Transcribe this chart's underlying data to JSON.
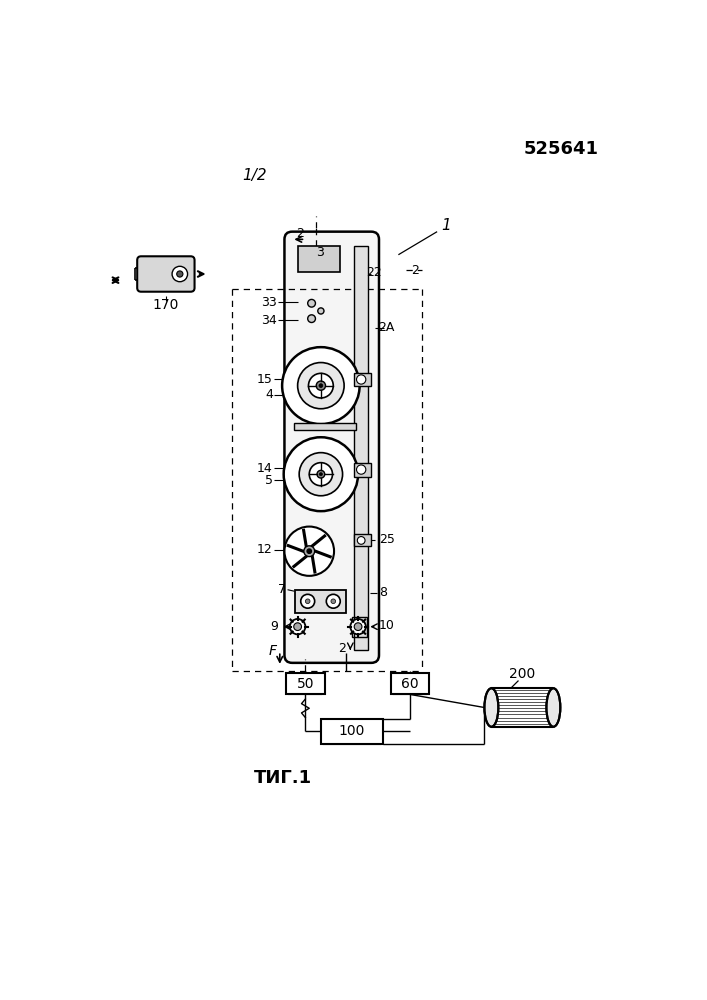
{
  "title_number": "525641",
  "fig_fraction": "1/2",
  "fig_label": "ΤИГ.1",
  "background": "#ffffff",
  "line_color": "#000000"
}
